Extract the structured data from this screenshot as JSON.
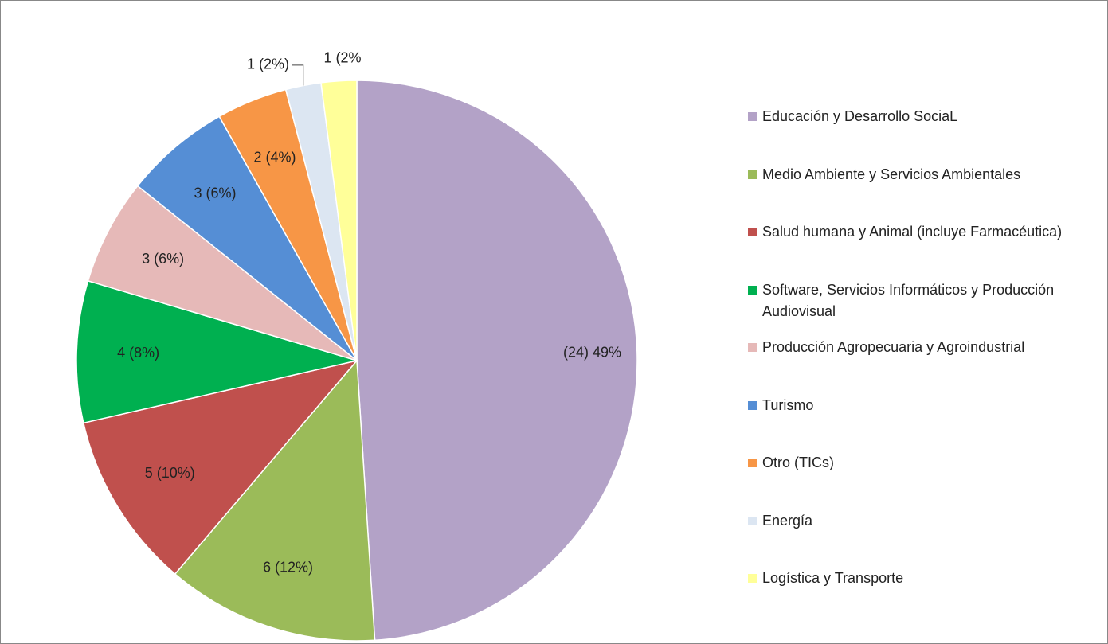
{
  "chart_data": {
    "type": "pie",
    "categories": [
      "Educación y Desarrollo SociaL",
      "Medio Ambiente y Servicios Ambientales",
      "Salud humana y Animal (incluye Farmacéutica)",
      "Software, Servicios Informáticos y Producción Audiovisual",
      "Producción Agropecuaria y Agroindustrial",
      "Turismo",
      "Otro (TICs)",
      "Energía",
      "Logística y Transporte"
    ],
    "values": [
      24,
      6,
      5,
      4,
      3,
      3,
      2,
      1,
      1
    ],
    "value_labels": [
      "(24) 49%",
      "6 (12%)",
      "5 (10%)",
      "4 (8%)",
      "3 (6%)",
      "3 (6%)",
      "2 (4%)",
      "1 (2%)",
      "1 (2%"
    ],
    "colors": [
      "#b3a2c7",
      "#9bbb59",
      "#c0504d",
      "#00b050",
      "#e6b9b8",
      "#558ed5",
      "#f79646",
      "#dce6f2",
      "#ffff99"
    ],
    "legend": "right"
  }
}
